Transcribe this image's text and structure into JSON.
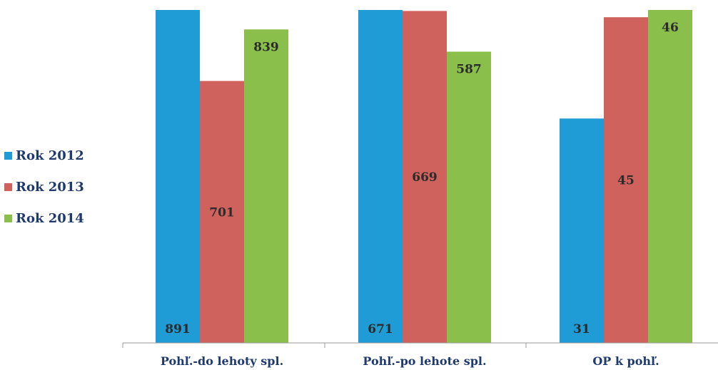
{
  "chart_data": {
    "type": "bar",
    "categories": [
      "Pohľ.-do lehoty spl.",
      "Pohľ.-po lehote spl.",
      "OP k pohľ."
    ],
    "series": [
      {
        "name": "Rok 2012",
        "color": "#1f9bd6",
        "values": [
          891,
          671,
          31
        ]
      },
      {
        "name": "Rok 2013",
        "color": "#cf625c",
        "values": [
          701,
          669,
          45
        ]
      },
      {
        "name": "Rok 2014",
        "color": "#8bbf4c",
        "values": [
          839,
          587,
          46
        ]
      }
    ],
    "panels": [
      {
        "ylim": [
          0,
          891
        ]
      },
      {
        "ylim": [
          0,
          671
        ]
      },
      {
        "ylim": [
          0,
          46
        ]
      }
    ],
    "legend_position": "left",
    "grid": false,
    "title": "",
    "xlabel": "",
    "ylabel": ""
  }
}
